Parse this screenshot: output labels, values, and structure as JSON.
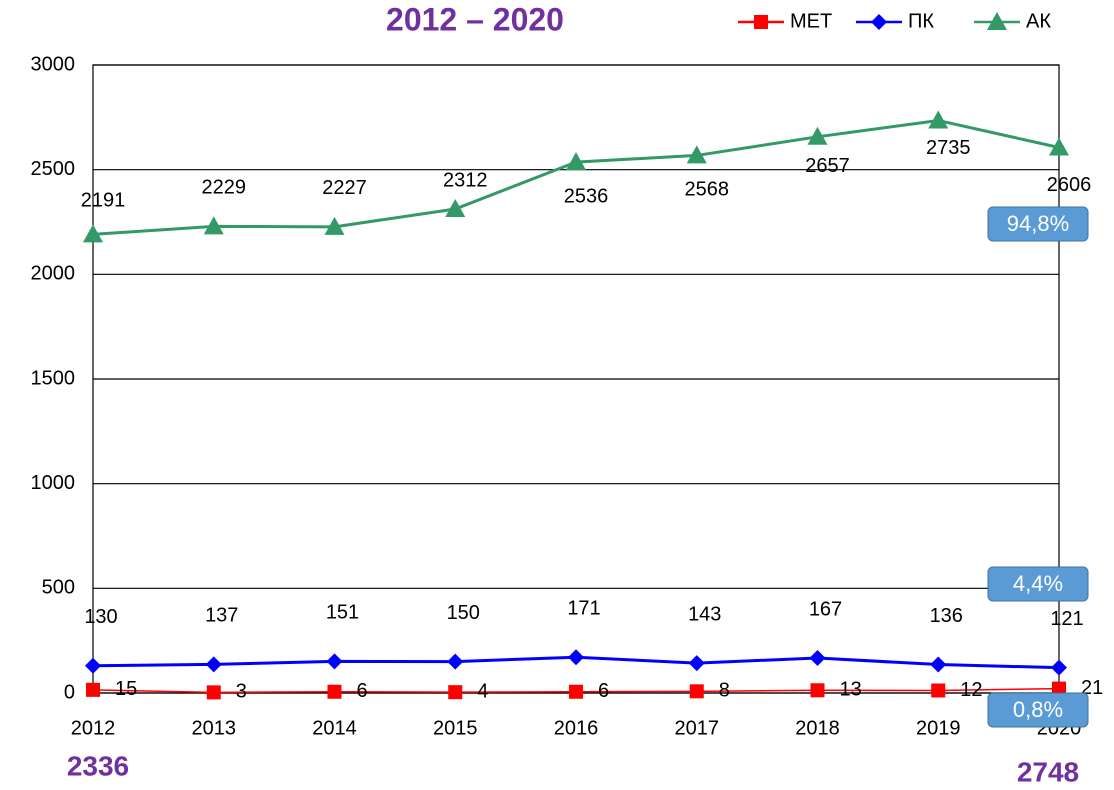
{
  "chart_data": {
    "type": "line",
    "title": "2012 – 2020",
    "categories": [
      "2012",
      "2013",
      "2014",
      "2015",
      "2016",
      "2017",
      "2018",
      "2019",
      "2020"
    ],
    "series": [
      {
        "name": "МЕТ",
        "color": "#ff0000",
        "marker": "square",
        "values": [
          15,
          3,
          6,
          4,
          6,
          8,
          13,
          12,
          21
        ]
      },
      {
        "name": "ПК",
        "color": "#0000ff",
        "marker": "diamond",
        "values": [
          130,
          137,
          151,
          150,
          171,
          143,
          167,
          136,
          121
        ]
      },
      {
        "name": "АК",
        "color": "#339966",
        "marker": "triangle",
        "values": [
          2191,
          2229,
          2227,
          2312,
          2536,
          2568,
          2657,
          2735,
          2606
        ]
      }
    ],
    "ylim": [
      0,
      3000
    ],
    "yticks": [
      0,
      500,
      1000,
      1500,
      2000,
      2500,
      3000
    ],
    "grid": true,
    "legend": "top-right",
    "annotations": [
      "94,8%",
      "4,4%",
      "0,8%",
      "2336",
      "2748"
    ]
  }
}
